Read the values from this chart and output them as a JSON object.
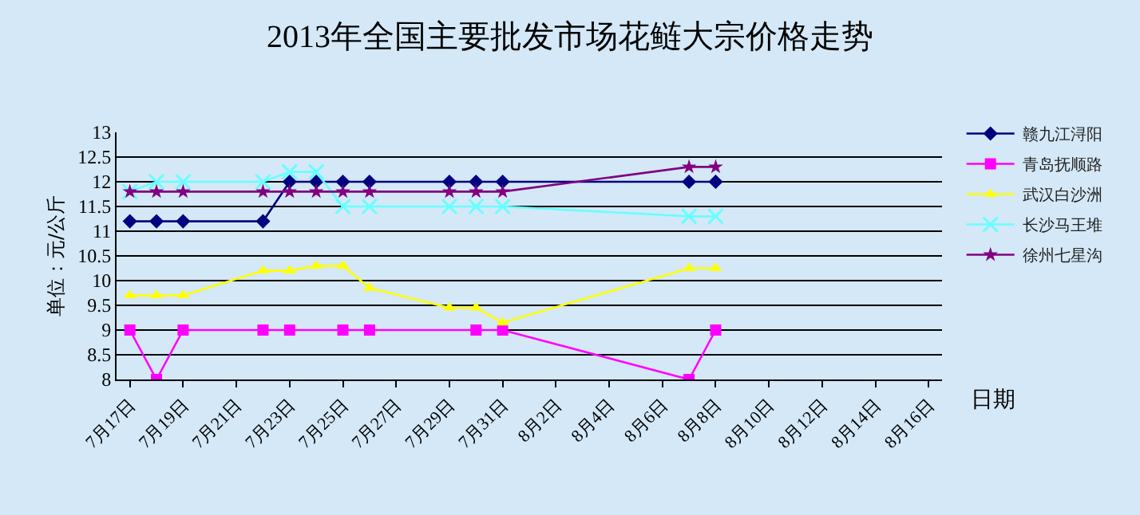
{
  "chart_data": {
    "type": "line",
    "title": "2013年全国主要批发市场花鲢大宗价格走势",
    "xlabel": "日期",
    "ylabel": "单位：元/公斤",
    "xlim": [
      "--07-16T12:00",
      "--08-16T12:00"
    ],
    "xticks": [
      {
        "value": "--07-17",
        "label": "7月17日"
      },
      {
        "value": "--07-19",
        "label": "7月19日"
      },
      {
        "value": "--07-21",
        "label": "7月21日"
      },
      {
        "value": "--07-23",
        "label": "7月23日"
      },
      {
        "value": "--07-25",
        "label": "7月25日"
      },
      {
        "value": "--07-27",
        "label": "7月27日"
      },
      {
        "value": "--07-29",
        "label": "7月29日"
      },
      {
        "value": "--07-31",
        "label": "7月31日"
      },
      {
        "value": "--08-02",
        "label": "8月2日"
      },
      {
        "value": "--08-04",
        "label": "8月4日"
      },
      {
        "value": "--08-06",
        "label": "8月6日"
      },
      {
        "value": "--08-08",
        "label": "8月8日"
      },
      {
        "value": "--08-10",
        "label": "8月10日"
      },
      {
        "value": "--08-12",
        "label": "8月12日"
      },
      {
        "value": "--08-14",
        "label": "8月14日"
      },
      {
        "value": "--08-16",
        "label": "8月16日"
      }
    ],
    "ylim": [
      8,
      13
    ],
    "yticks": [
      8,
      8.5,
      9,
      9.5,
      10,
      10.5,
      11,
      11.5,
      12,
      12.5,
      13
    ],
    "grid": "y",
    "legend": "right",
    "line_style": "solid",
    "series": [
      {
        "name": "赣九江浔阳",
        "color": "#000080",
        "marker": "diamond",
        "x": [
          "--07-17",
          "--07-18",
          "--07-19",
          "--07-22",
          "--07-23",
          "--07-24",
          "--07-25",
          "--07-26",
          "--07-29",
          "--07-30",
          "--07-31",
          "--08-07",
          "--08-08"
        ],
        "values": [
          11.2,
          11.2,
          11.2,
          11.2,
          12,
          12,
          12,
          12,
          12,
          12,
          12,
          12,
          12
        ]
      },
      {
        "name": "青岛抚顺路",
        "color": "#ff00ff",
        "marker": "square",
        "x": [
          "--07-17",
          "--07-18",
          "--07-19",
          "--07-22",
          "--07-23",
          "--07-25",
          "--07-26",
          "--07-30",
          "--07-31",
          "--08-07",
          "--08-08"
        ],
        "values": [
          9,
          8,
          9,
          9,
          9,
          9,
          9,
          9,
          9,
          8,
          9
        ]
      },
      {
        "name": "武汉白沙洲",
        "color": "#ffff00",
        "marker": "triangle",
        "x": [
          "--07-17",
          "--07-18",
          "--07-19",
          "--07-22",
          "--07-23",
          "--07-24",
          "--07-25",
          "--07-26",
          "--07-29",
          "--07-30",
          "--07-31",
          "--08-07",
          "--08-08"
        ],
        "values": [
          9.7,
          9.7,
          9.7,
          10.2,
          10.2,
          10.3,
          10.3,
          9.85,
          9.45,
          9.45,
          9.15,
          10.25,
          10.25
        ]
      },
      {
        "name": "长沙马王堆",
        "color": "#66ffff",
        "marker": "cross",
        "x": [
          "--07-17",
          "--07-18",
          "--07-19",
          "--07-22",
          "--07-23",
          "--07-24",
          "--07-25",
          "--07-26",
          "--07-29",
          "--07-30",
          "--07-31",
          "--08-07",
          "--08-08"
        ],
        "values": [
          11.8,
          12,
          12,
          12,
          12.2,
          12.2,
          11.5,
          11.5,
          11.5,
          11.5,
          11.5,
          11.3,
          11.3
        ]
      },
      {
        "name": "徐州七星沟",
        "color": "#800080",
        "marker": "star",
        "x": [
          "--07-17",
          "--07-18",
          "--07-19",
          "--07-22",
          "--07-23",
          "--07-24",
          "--07-25",
          "--07-26",
          "--07-29",
          "--07-30",
          "--07-31",
          "--08-07",
          "--08-08"
        ],
        "values": [
          11.8,
          11.8,
          11.8,
          11.8,
          11.8,
          11.8,
          11.8,
          11.8,
          11.8,
          11.8,
          11.8,
          12.3,
          12.3
        ]
      }
    ]
  }
}
